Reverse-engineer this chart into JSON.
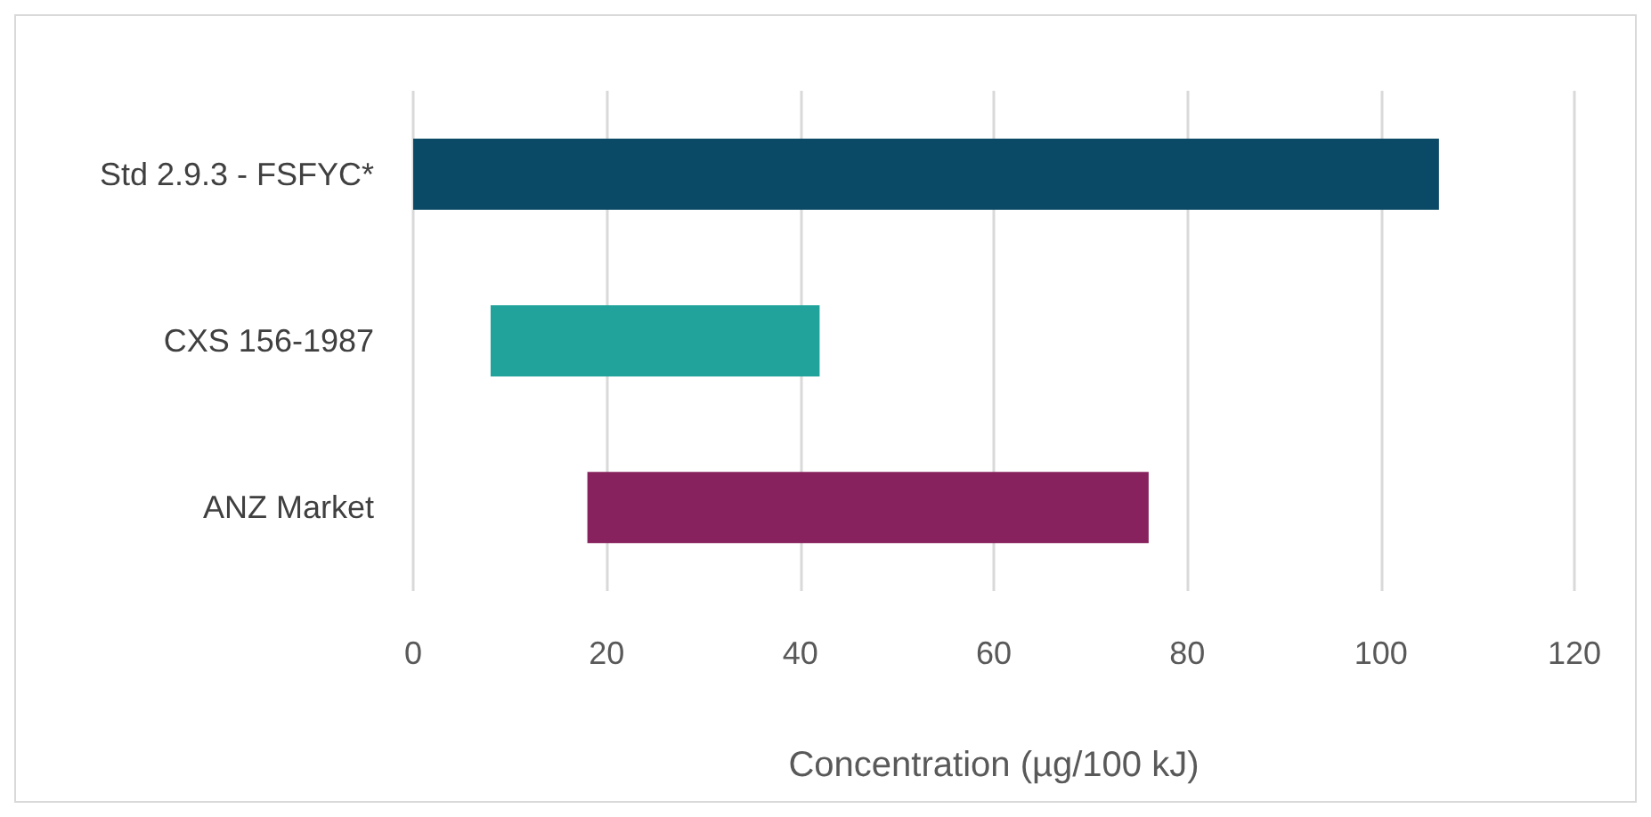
{
  "chart_data": {
    "type": "bar",
    "orientation": "horizontal",
    "categories": [
      "Std 2.9.3 - FSFYC*",
      "CXS 156-1987",
      "ANZ Market"
    ],
    "values": [
      106,
      34,
      58
    ],
    "base": [
      0,
      8,
      18
    ],
    "colors": [
      "#0b4a66",
      "#21a39c",
      "#87225e"
    ],
    "xlabel": "Concentration (µg/100 kJ)",
    "xlim": [
      0,
      120
    ],
    "xticks": [
      0,
      20,
      40,
      60,
      80,
      100,
      120
    ],
    "grid": "x"
  }
}
